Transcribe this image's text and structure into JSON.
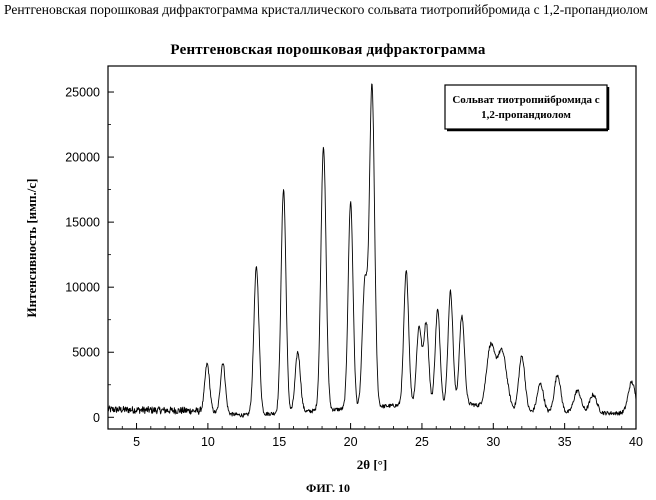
{
  "document": {
    "header": "Рентгеновская порошковая дифрактограмма кристаллического сольвата тиотропийбромида с 1,2-пропандиолом",
    "caption": "ФИГ. 10"
  },
  "chart_data": {
    "type": "line",
    "title": "Рентгеновская порошковая дифрактограмма",
    "xlabel": "2θ [°]",
    "ylabel": "Интенсивность [имп./с]",
    "xlim": [
      3,
      40
    ],
    "ylim": [
      -900,
      27000
    ],
    "x_ticks": [
      5,
      10,
      15,
      20,
      25,
      30,
      35,
      40
    ],
    "x_tick_labels": [
      "5",
      "10",
      "15",
      "20",
      "25",
      "30",
      "35",
      "40"
    ],
    "y_ticks": [
      0,
      5000,
      10000,
      15000,
      20000,
      25000
    ],
    "y_tick_labels": [
      "0",
      "5000",
      "10000",
      "15000",
      "20000",
      "25000"
    ],
    "legend": {
      "line1": "Сольват тиотропийбромида с",
      "line2": "1,2-пропандиолом",
      "placement": "top-right"
    },
    "grid": false,
    "series": [
      {
        "name": "",
        "color": "#000000",
        "peaks": [
          {
            "x": 9.95,
            "y": 3700,
            "w": 0.17
          },
          {
            "x": 11.05,
            "y": 3900,
            "w": 0.17
          },
          {
            "x": 13.4,
            "y": 11300,
            "w": 0.18
          },
          {
            "x": 15.3,
            "y": 17200,
            "w": 0.17
          },
          {
            "x": 16.3,
            "y": 4600,
            "w": 0.18
          },
          {
            "x": 18.1,
            "y": 20300,
            "w": 0.18
          },
          {
            "x": 20.0,
            "y": 15900,
            "w": 0.17
          },
          {
            "x": 21.0,
            "y": 9500,
            "w": 0.18
          },
          {
            "x": 21.5,
            "y": 24600,
            "w": 0.18
          },
          {
            "x": 23.9,
            "y": 10300,
            "w": 0.17
          },
          {
            "x": 24.8,
            "y": 6000,
            "w": 0.18
          },
          {
            "x": 25.3,
            "y": 6300,
            "w": 0.17
          },
          {
            "x": 26.1,
            "y": 7300,
            "w": 0.17
          },
          {
            "x": 27.0,
            "y": 8700,
            "w": 0.17
          },
          {
            "x": 27.8,
            "y": 6800,
            "w": 0.18
          },
          {
            "x": 29.8,
            "y": 4600,
            "w": 0.28
          },
          {
            "x": 30.6,
            "y": 4600,
            "w": 0.35
          },
          {
            "x": 32.0,
            "y": 4300,
            "w": 0.22
          },
          {
            "x": 33.3,
            "y": 2200,
            "w": 0.22
          },
          {
            "x": 34.5,
            "y": 2900,
            "w": 0.22
          },
          {
            "x": 35.9,
            "y": 1700,
            "w": 0.25
          },
          {
            "x": 37.0,
            "y": 1400,
            "w": 0.25
          },
          {
            "x": 39.7,
            "y": 2400,
            "w": 0.25
          }
        ],
        "baseline": [
          {
            "x": 3.0,
            "y": 600
          },
          {
            "x": 9.0,
            "y": 500
          },
          {
            "x": 12.5,
            "y": 150
          },
          {
            "x": 20.5,
            "y": 700
          },
          {
            "x": 23.0,
            "y": 900
          },
          {
            "x": 28.5,
            "y": 1000
          },
          {
            "x": 31.0,
            "y": 400
          },
          {
            "x": 40.0,
            "y": 300
          }
        ],
        "noise_amplitude": 280
      }
    ]
  }
}
